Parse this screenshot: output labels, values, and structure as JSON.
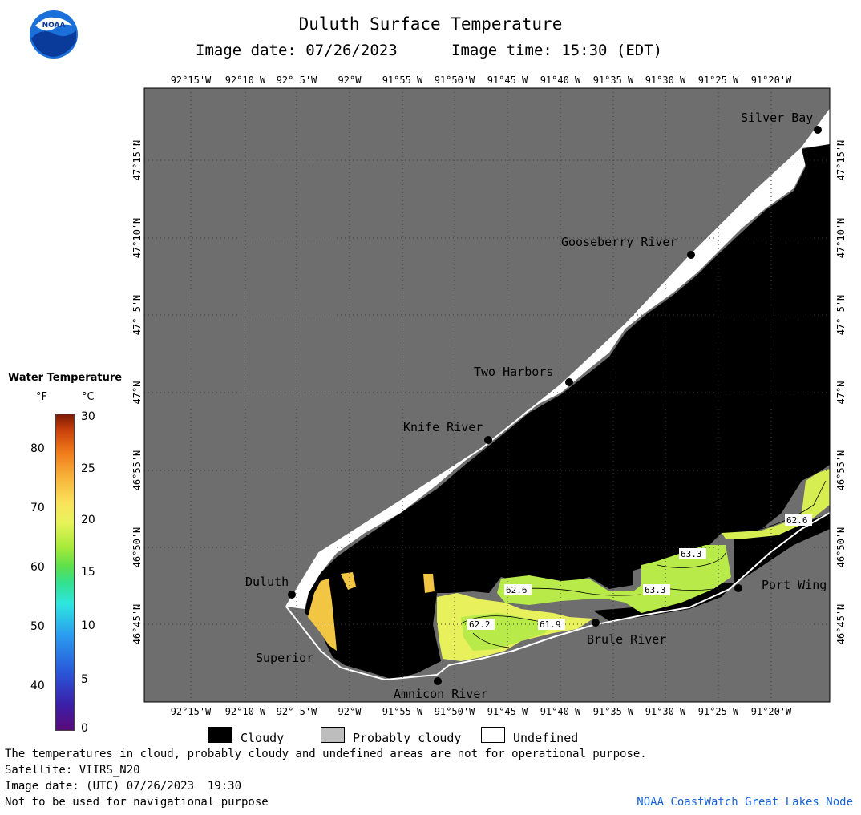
{
  "header": {
    "title": "Duluth Surface Temperature",
    "image_date_label": "Image date: 07/26/2023",
    "image_time_label": "Image time: 15:30 (EDT)",
    "logo_icon": "noaa-logo-icon"
  },
  "map": {
    "lon_labels": [
      "92°15'W",
      "92°10'W",
      "92° 5'W",
      "92°W",
      "91°55'W",
      "91°50'W",
      "91°45'W",
      "91°40'W",
      "91°35'W",
      "91°30'W",
      "91°25'W",
      "91°20'W"
    ],
    "lat_labels": [
      "47°15'N",
      "47°10'N",
      "47° 5'N",
      "47°N",
      "46°55'N",
      "46°50'N",
      "46°45'N"
    ],
    "places": [
      {
        "name": "Silver Bay"
      },
      {
        "name": "Gooseberry River"
      },
      {
        "name": "Two Harbors"
      },
      {
        "name": "Knife River"
      },
      {
        "name": "Duluth"
      },
      {
        "name": "Superior"
      },
      {
        "name": "Amnicon River"
      },
      {
        "name": "Brule River"
      },
      {
        "name": "Port Wing"
      }
    ],
    "contour_labels": [
      "62.6",
      "63.3",
      "62.6",
      "63.3",
      "62.2",
      "61.9"
    ],
    "colors": {
      "land": "#6e6e6e",
      "cloudy": "#000000",
      "undefined": "#ffffff",
      "warm_water": "#f2c542",
      "mid_water": "#e8f05c",
      "cool_water": "#b8ea4a"
    }
  },
  "legend": {
    "title": "Water Temperature",
    "unit_f": "°F",
    "unit_c": "°C",
    "f_ticks": [
      "80",
      "70",
      "60",
      "50",
      "40"
    ],
    "c_ticks": [
      "30",
      "25",
      "20",
      "15",
      "10",
      "5",
      "0"
    ]
  },
  "key": [
    {
      "label": "Cloudy",
      "color": "#000000"
    },
    {
      "label": "Probably cloudy",
      "color": "#bdbdbd"
    },
    {
      "label": "Undefined",
      "color": "#ffffff"
    }
  ],
  "footer": {
    "disclaimer": "The temperatures in cloud, probably cloudy and undefined areas are not for operational purpose.",
    "satellite": "Satellite: VIIRS_N20",
    "image_date_utc": "Image date: (UTC) 07/26/2023  19:30",
    "navigation": "Not to be used for navigational purpose",
    "credit": "NOAA CoastWatch Great Lakes Node"
  }
}
